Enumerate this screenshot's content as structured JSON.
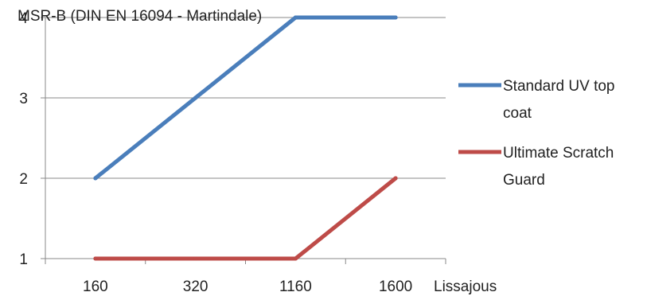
{
  "chart_data": {
    "type": "line",
    "title": "MSR-B (DIN EN 16094 - Martindale)",
    "xlabel": "Lissajous",
    "ylabel": "",
    "categories": [
      "160",
      "320",
      "1160",
      "1600"
    ],
    "ylim": [
      1,
      4
    ],
    "yticks": [
      1,
      2,
      3,
      4
    ],
    "grid": true,
    "legend_position": "right",
    "series": [
      {
        "name": "Standard UV top coat",
        "legend_lines": [
          "Standard UV top",
          "coat"
        ],
        "color": "#4a7ebb",
        "values": [
          2,
          3,
          4,
          4
        ]
      },
      {
        "name": "Ultimate Scratch Guard",
        "legend_lines": [
          "Ultimate Scratch",
          "Guard"
        ],
        "color": "#be4b48",
        "values": [
          1,
          1,
          1,
          2
        ]
      }
    ]
  }
}
